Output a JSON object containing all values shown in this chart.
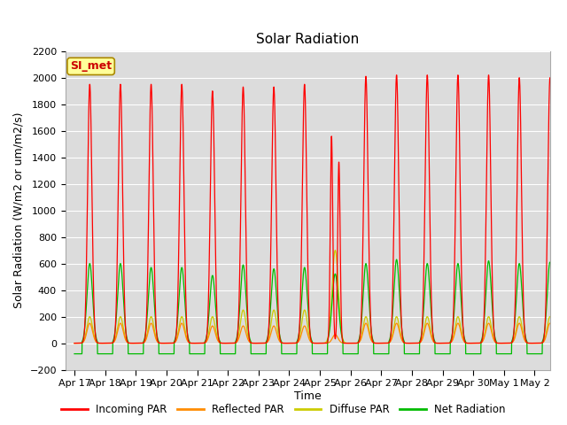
{
  "title": "Solar Radiation",
  "ylabel": "Solar Radiation (W/m2 or um/m2/s)",
  "xlabel": "Time",
  "ylim": [
    -200,
    2200
  ],
  "yticks": [
    -200,
    0,
    200,
    400,
    600,
    800,
    1000,
    1200,
    1400,
    1600,
    1800,
    2000,
    2200
  ],
  "xtick_labels": [
    "Apr 17",
    "Apr 18",
    "Apr 19",
    "Apr 20",
    "Apr 21",
    "Apr 22",
    "Apr 23",
    "Apr 24",
    "Apr 25",
    "Apr 26",
    "Apr 27",
    "Apr 28",
    "Apr 29",
    "Apr 30",
    "May 1",
    "May 2"
  ],
  "station_label": "SI_met",
  "bg_color": "#dcdcdc",
  "fig_bg": "#ffffff",
  "colors": {
    "incoming": "#ff0000",
    "reflected": "#ff8c00",
    "diffuse": "#cccc00",
    "net": "#00bb00"
  },
  "legend_labels": [
    "Incoming PAR",
    "Reflected PAR",
    "Diffuse PAR",
    "Net Radiation"
  ],
  "title_fontsize": 11,
  "axis_label_fontsize": 9,
  "tick_fontsize": 8
}
